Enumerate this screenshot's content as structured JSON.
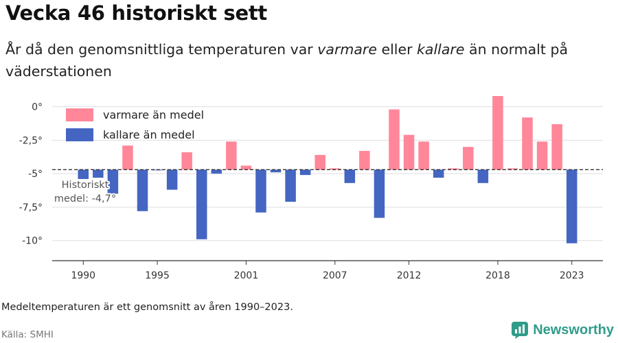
{
  "title": "Vecka 46 historiskt sett",
  "subtitle": {
    "part1": "År då den genomsnittliga temperaturen var ",
    "warm_word": "varmare",
    "part2": " eller ",
    "cold_word": "kallare",
    "part3": " än normalt på väderstationen"
  },
  "note": "Medeltemperaturen är ett genomsnitt av åren 1990–2023.",
  "source": "Källa: SMHI",
  "brand": "Newsworthy",
  "colors": {
    "warm": "#ff8799",
    "cold": "#4466c2",
    "grid": "#dddddd",
    "axis": "#333333",
    "brand": "#2f9c8a"
  },
  "chart_data": {
    "type": "bar",
    "baseline": -4.7,
    "baseline_label": [
      "Historiskt",
      "medel: -4,7°"
    ],
    "legend": [
      {
        "label": "varmare än medel",
        "key": "warm"
      },
      {
        "label": "kallare än medel",
        "key": "cold"
      }
    ],
    "y_ticks": [
      0,
      -2.5,
      -5,
      -7.5,
      -10
    ],
    "y_tick_labels": [
      "0°",
      "-2,5°",
      "-5°",
      "-7,5°",
      "-10°"
    ],
    "ylim": [
      -11.5,
      0.8
    ],
    "x_ticks": [
      1990,
      1995,
      2001,
      2007,
      2012,
      2018,
      2023
    ],
    "xlim": [
      1987.9,
      2025.1
    ],
    "years": [
      1990,
      1991,
      1992,
      1993,
      1994,
      1995,
      1996,
      1997,
      1998,
      1999,
      2000,
      2001,
      2002,
      2003,
      2004,
      2005,
      2006,
      2007,
      2008,
      2009,
      2010,
      2011,
      2012,
      2013,
      2014,
      2015,
      2016,
      2017,
      2018,
      2019,
      2020,
      2021,
      2022,
      2023
    ],
    "values": [
      -5.4,
      -5.3,
      -6.5,
      -2.9,
      -7.8,
      -4.7,
      -6.2,
      -3.4,
      -9.9,
      -5.0,
      -2.6,
      -4.4,
      -7.9,
      -4.9,
      -7.1,
      -5.1,
      -3.6,
      -4.6,
      -5.7,
      -3.3,
      -8.3,
      -0.2,
      -2.1,
      -2.6,
      -5.3,
      -4.6,
      -3.0,
      -5.7,
      0.8,
      -4.6,
      -0.8,
      -2.6,
      -1.3,
      -10.2
    ]
  }
}
